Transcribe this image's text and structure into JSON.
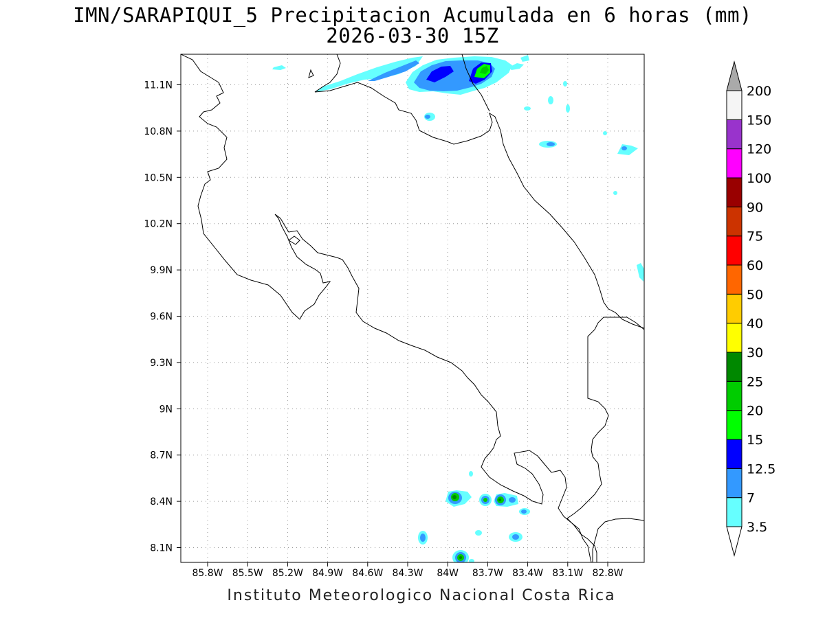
{
  "title": {
    "line1": "IMN/SARAPIQUI_5 Precipitacion Acumulada en 6 horas (mm)",
    "line2": "2026-03-30 15Z"
  },
  "credit": "Instituto Meteorologico Nacional Costa Rica",
  "axes": {
    "lat_ticks": [
      {
        "value": 11.1,
        "label": "11.1N"
      },
      {
        "value": 10.8,
        "label": "10.8N"
      },
      {
        "value": 10.5,
        "label": "10.5N"
      },
      {
        "value": 10.2,
        "label": "10.2N"
      },
      {
        "value": 9.9,
        "label": "9.9N"
      },
      {
        "value": 9.6,
        "label": "9.6N"
      },
      {
        "value": 9.3,
        "label": "9.3N"
      },
      {
        "value": 9.0,
        "label": "9N"
      },
      {
        "value": 8.7,
        "label": "8.7N"
      },
      {
        "value": 8.4,
        "label": "8.4N"
      },
      {
        "value": 8.1,
        "label": "8.1N"
      }
    ],
    "lon_ticks": [
      {
        "value": -85.8,
        "label": "85.8W"
      },
      {
        "value": -85.5,
        "label": "85.5W"
      },
      {
        "value": -85.2,
        "label": "85.2W"
      },
      {
        "value": -84.9,
        "label": "84.9W"
      },
      {
        "value": -84.6,
        "label": "84.6W"
      },
      {
        "value": -84.3,
        "label": "84.3W"
      },
      {
        "value": -84.0,
        "label": "84W"
      },
      {
        "value": -83.7,
        "label": "83.7W"
      },
      {
        "value": -83.4,
        "label": "83.4W"
      },
      {
        "value": -83.1,
        "label": "83.1W"
      },
      {
        "value": -82.8,
        "label": "82.8W"
      }
    ],
    "grid": "dotted"
  },
  "colorbar": {
    "units": "mm",
    "labels": [
      "3.5",
      "7",
      "12.5",
      "15",
      "20",
      "25",
      "30",
      "40",
      "50",
      "60",
      "75",
      "90",
      "100",
      "120",
      "150",
      "200"
    ],
    "colors": [
      "#66ffff",
      "#3399ff",
      "#0000ff",
      "#00ff00",
      "#00cc00",
      "#008800",
      "#ffff00",
      "#ffcc00",
      "#ff6600",
      "#ff0000",
      "#cc3300",
      "#990000",
      "#ff00ff",
      "#9933cc",
      "#f5f5f5",
      "#aaaaaa"
    ]
  },
  "precip_areas": [
    {
      "level": "3.5",
      "color": "#66ffff",
      "region": "northern border band"
    },
    {
      "level": "7",
      "color": "#3399ff",
      "region": "northern border band"
    },
    {
      "level": "12.5",
      "color": "#0000ff",
      "region": "northern border band"
    },
    {
      "level": "20",
      "color": "#00cc00",
      "region": "northern border core"
    },
    {
      "level": "25",
      "color": "#008800",
      "region": "southern cells near 8.4N"
    }
  ]
}
